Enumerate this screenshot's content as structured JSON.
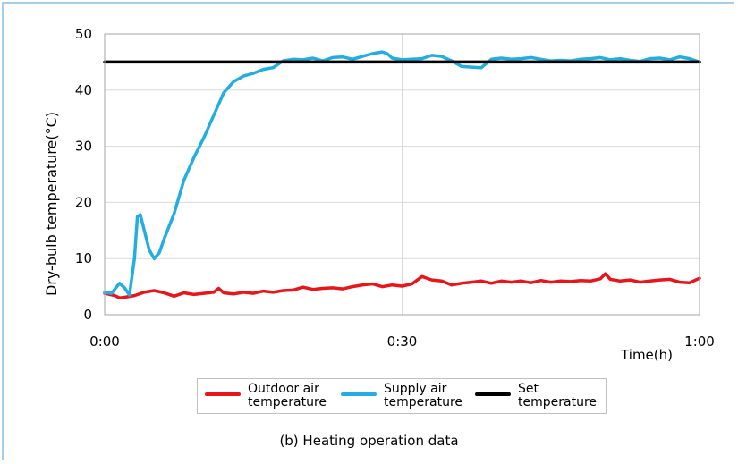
{
  "chart_data": {
    "type": "line",
    "title": "",
    "caption": "(b) Heating operation data",
    "xlabel": "Time(h)",
    "ylabel": "Dry-bulb temperature(°C)",
    "xlim": [
      0,
      60
    ],
    "ylim": [
      0,
      50
    ],
    "x_ticks": [
      {
        "value": 0,
        "label": "0:00"
      },
      {
        "value": 30,
        "label": "0:30"
      },
      {
        "value": 60,
        "label": "1:00"
      }
    ],
    "y_ticks": [
      0,
      10,
      20,
      30,
      40,
      50
    ],
    "grid": true,
    "legend_position": "bottom",
    "series": [
      {
        "name": "Outdoor air temperature",
        "color": "#e8151b",
        "x": [
          0,
          1,
          1.5,
          2,
          3,
          4,
          5,
          6,
          7,
          8,
          9,
          10,
          11,
          11.5,
          12,
          13,
          14,
          15,
          16,
          17,
          18,
          19,
          20,
          21,
          22,
          23,
          24,
          25,
          26,
          27,
          28,
          29,
          30,
          31,
          32,
          33,
          34,
          35,
          36,
          37,
          38,
          39,
          40,
          41,
          42,
          43,
          44,
          45,
          46,
          47,
          48,
          49,
          50,
          50.5,
          51,
          52,
          53,
          54,
          55,
          56,
          57,
          58,
          59,
          60
        ],
        "values": [
          3.8,
          3.4,
          3.0,
          3.1,
          3.4,
          4.0,
          4.3,
          3.9,
          3.3,
          3.9,
          3.6,
          3.8,
          4.0,
          4.7,
          3.9,
          3.7,
          4.0,
          3.8,
          4.2,
          4.0,
          4.3,
          4.4,
          4.9,
          4.5,
          4.7,
          4.8,
          4.6,
          5.0,
          5.3,
          5.5,
          5.0,
          5.3,
          5.1,
          5.5,
          6.8,
          6.2,
          6.0,
          5.3,
          5.6,
          5.8,
          6.0,
          5.6,
          6.0,
          5.8,
          6.0,
          5.7,
          6.1,
          5.8,
          6.0,
          5.9,
          6.1,
          6.0,
          6.4,
          7.3,
          6.3,
          6.0,
          6.2,
          5.8,
          6.0,
          6.2,
          6.3,
          5.8,
          5.7,
          6.5
        ]
      },
      {
        "name": "Supply air temperature",
        "color": "#22aee0",
        "x": [
          0,
          0.7,
          1,
          1.5,
          2,
          2.5,
          3,
          3.3,
          3.6,
          4,
          4.5,
          5,
          5.5,
          6,
          7,
          8,
          9,
          10,
          11,
          12,
          13,
          14,
          15,
          16,
          17,
          18,
          19,
          20,
          21,
          22,
          23,
          24,
          25,
          26,
          27,
          28,
          28.5,
          29,
          30,
          31,
          32,
          33,
          34,
          35,
          36,
          37,
          38,
          39,
          40,
          41,
          42,
          43,
          44,
          45,
          46,
          47,
          48,
          49,
          50,
          51,
          52,
          53,
          54,
          55,
          56,
          57,
          58,
          59,
          60
        ],
        "values": [
          4.0,
          3.8,
          4.5,
          5.6,
          4.8,
          3.5,
          10.0,
          17.5,
          17.8,
          15.0,
          11.5,
          10.0,
          11.0,
          13.5,
          18.0,
          24.0,
          28.0,
          31.5,
          35.5,
          39.5,
          41.5,
          42.5,
          43.0,
          43.7,
          44.0,
          45.2,
          45.5,
          45.4,
          45.7,
          45.2,
          45.8,
          45.9,
          45.5,
          46.0,
          46.5,
          46.8,
          46.5,
          45.7,
          45.4,
          45.5,
          45.6,
          46.2,
          46.0,
          45.2,
          44.2,
          44.1,
          44.0,
          45.5,
          45.7,
          45.5,
          45.6,
          45.8,
          45.5,
          45.2,
          45.3,
          45.2,
          45.5,
          45.6,
          45.8,
          45.4,
          45.6,
          45.3,
          45.1,
          45.6,
          45.7,
          45.4,
          45.9,
          45.6,
          45.0
        ]
      },
      {
        "name": "Set temperature",
        "color": "#000000",
        "x": [
          0,
          60
        ],
        "values": [
          45,
          45
        ]
      }
    ],
    "legend": [
      {
        "label": "Outdoor air\ntemperature",
        "color": "#e8151b"
      },
      {
        "label": "Supply air\ntemperature",
        "color": "#22aee0"
      },
      {
        "label": "Set\ntemperature",
        "color": "#000000"
      }
    ]
  }
}
